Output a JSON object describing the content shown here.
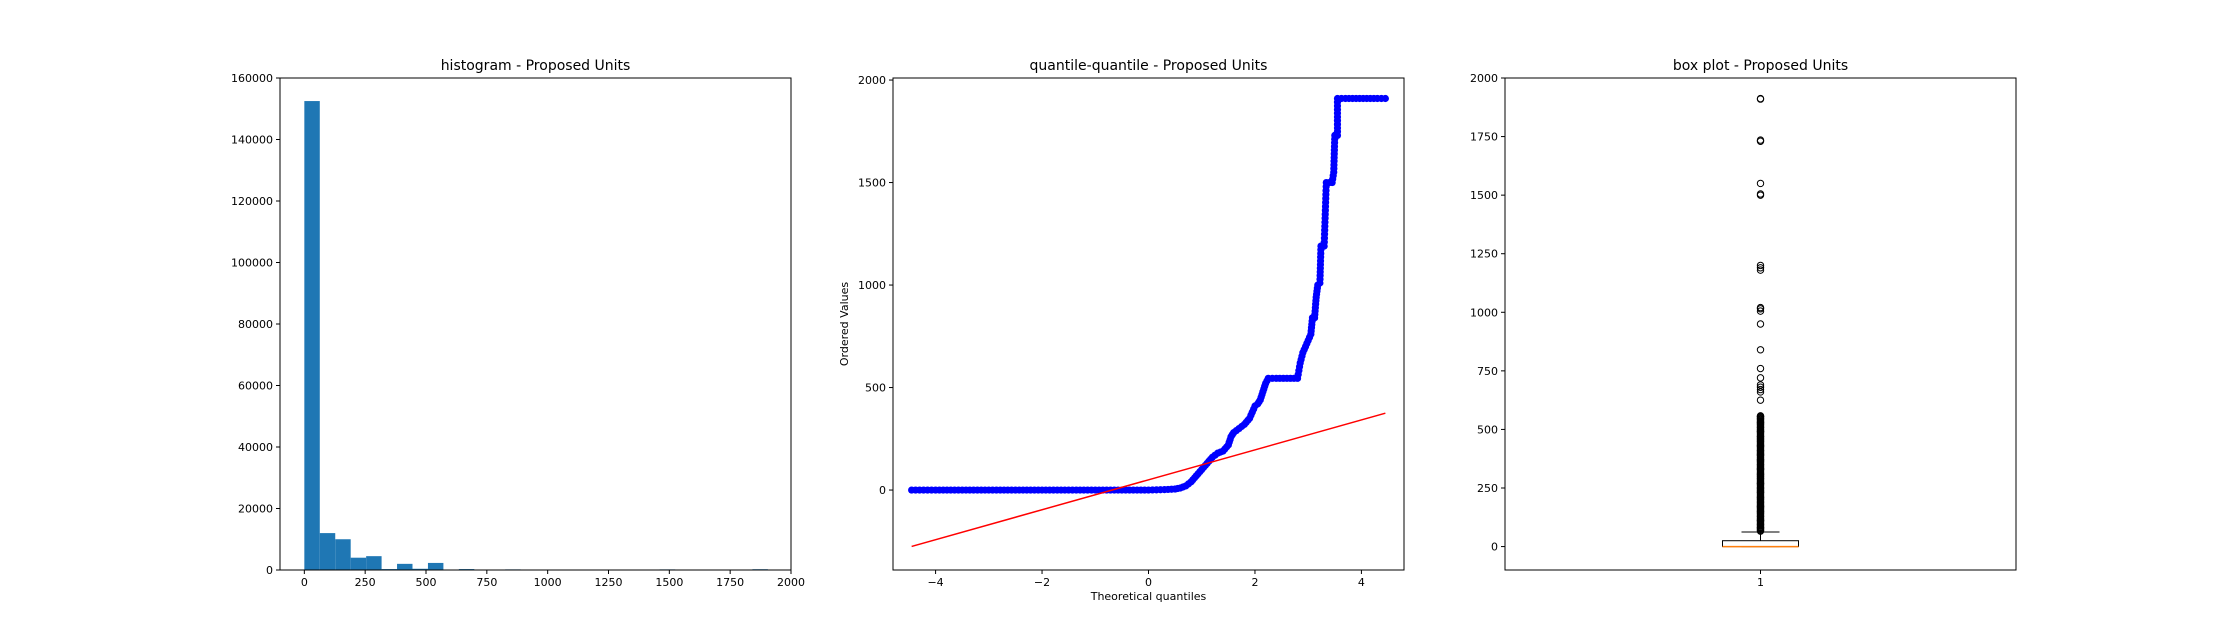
{
  "chart_data": [
    {
      "type": "bar",
      "subtype": "histogram",
      "title": "histogram - Proposed Units",
      "xlabel": "",
      "ylabel": "",
      "xlim": [
        -100,
        2000
      ],
      "ylim": [
        0,
        160000
      ],
      "xticks": [
        0,
        250,
        500,
        750,
        1000,
        1250,
        1500,
        1750,
        2000
      ],
      "yticks": [
        0,
        20000,
        40000,
        60000,
        80000,
        100000,
        120000,
        140000,
        160000
      ],
      "bins": [
        [
          0,
          63.5,
          152500
        ],
        [
          63.5,
          127,
          12000
        ],
        [
          127,
          190.5,
          10000
        ],
        [
          190.5,
          254,
          4000
        ],
        [
          254,
          317.5,
          4500
        ],
        [
          317.5,
          381,
          300
        ],
        [
          381,
          444.5,
          2000
        ],
        [
          444.5,
          508,
          400
        ],
        [
          508,
          571.5,
          2300
        ],
        [
          571.5,
          635,
          100
        ],
        [
          635,
          698.5,
          300
        ],
        [
          698.5,
          762,
          150
        ],
        [
          762,
          825.5,
          80
        ],
        [
          825.5,
          889,
          200
        ],
        [
          889,
          952.5,
          40
        ],
        [
          952.5,
          1016,
          150
        ],
        [
          1016,
          1079.5,
          10
        ],
        [
          1079.5,
          1143,
          10
        ],
        [
          1143,
          1206.5,
          150
        ],
        [
          1206.5,
          1270,
          10
        ],
        [
          1270,
          1333.5,
          5
        ],
        [
          1333.5,
          1397,
          5
        ],
        [
          1397,
          1460.5,
          5
        ],
        [
          1460.5,
          1524,
          200
        ],
        [
          1524,
          1587.5,
          20
        ],
        [
          1587.5,
          1651,
          5
        ],
        [
          1651,
          1714.5,
          5
        ],
        [
          1714.5,
          1778,
          60
        ],
        [
          1778,
          1841.5,
          5
        ],
        [
          1841.5,
          1905,
          250
        ]
      ],
      "colors": {
        "bar": "#1f77b4"
      },
      "grid": false,
      "legend": "none"
    },
    {
      "type": "scatter",
      "subtype": "qq-plot",
      "title": "quantile-quantile - Proposed Units",
      "xlabel": "Theoretical quantiles",
      "ylabel": "Ordered Values",
      "xlim": [
        -4.8,
        4.8
      ],
      "ylim": [
        -390,
        2010
      ],
      "xticks": [
        -4,
        -2,
        0,
        2,
        4
      ],
      "yticks": [
        0,
        500,
        1000,
        1500,
        2000
      ],
      "points": [
        [
          -4.45,
          0
        ],
        [
          -4.0,
          0
        ],
        [
          -3.5,
          0
        ],
        [
          -3.0,
          0
        ],
        [
          -2.5,
          0
        ],
        [
          -2.0,
          0
        ],
        [
          -1.5,
          0
        ],
        [
          -1.0,
          0
        ],
        [
          -0.5,
          0
        ],
        [
          0.0,
          0
        ],
        [
          0.3,
          2
        ],
        [
          0.5,
          5
        ],
        [
          0.6,
          10
        ],
        [
          0.7,
          20
        ],
        [
          0.8,
          40
        ],
        [
          0.9,
          70
        ],
        [
          1.0,
          100
        ],
        [
          1.1,
          130
        ],
        [
          1.2,
          160
        ],
        [
          1.3,
          180
        ],
        [
          1.4,
          190
        ],
        [
          1.5,
          220
        ],
        [
          1.55,
          260
        ],
        [
          1.6,
          280
        ],
        [
          1.7,
          300
        ],
        [
          1.8,
          320
        ],
        [
          1.9,
          350
        ],
        [
          1.95,
          380
        ],
        [
          2.0,
          410
        ],
        [
          2.05,
          420
        ],
        [
          2.1,
          440
        ],
        [
          2.15,
          480
        ],
        [
          2.2,
          520
        ],
        [
          2.25,
          545
        ],
        [
          2.4,
          545
        ],
        [
          2.6,
          545
        ],
        [
          2.8,
          545
        ],
        [
          2.85,
          620
        ],
        [
          2.9,
          670
        ],
        [
          2.95,
          700
        ],
        [
          3.0,
          730
        ],
        [
          3.05,
          760
        ],
        [
          3.08,
          840
        ],
        [
          3.12,
          840
        ],
        [
          3.15,
          940
        ],
        [
          3.18,
          1000
        ],
        [
          3.22,
          1010
        ],
        [
          3.24,
          1190
        ],
        [
          3.3,
          1190
        ],
        [
          3.34,
          1500
        ],
        [
          3.45,
          1500
        ],
        [
          3.48,
          1550
        ],
        [
          3.5,
          1730
        ],
        [
          3.55,
          1730
        ],
        [
          3.55,
          1910
        ],
        [
          3.7,
          1910
        ],
        [
          3.9,
          1910
        ],
        [
          4.1,
          1910
        ],
        [
          4.3,
          1910
        ],
        [
          4.45,
          1910
        ]
      ],
      "fit_line": {
        "x": [
          -4.45,
          4.45
        ],
        "y": [
          -275,
          375
        ]
      },
      "colors": {
        "points": "#0000ff",
        "line": "#ff0000"
      },
      "grid": false,
      "legend": "none"
    },
    {
      "type": "box",
      "title": "box plot - Proposed Units",
      "xlabel": "",
      "ylabel": "",
      "categories": [
        "1"
      ],
      "ylim": [
        -100,
        2000
      ],
      "yticks": [
        0,
        250,
        500,
        750,
        1000,
        1250,
        1500,
        1750,
        2000
      ],
      "box": {
        "min": 0,
        "q1": 0,
        "median": 0,
        "q3": 25,
        "whisker_high": 62
      },
      "outliers": [
        70,
        80,
        95,
        110,
        130,
        150,
        170,
        190,
        210,
        230,
        250,
        270,
        290,
        310,
        330,
        350,
        370,
        390,
        410,
        430,
        450,
        470,
        490,
        510,
        530,
        545,
        555,
        625,
        660,
        670,
        680,
        690,
        720,
        760,
        840,
        950,
        1005,
        1015,
        1020,
        1180,
        1190,
        1200,
        1500,
        1505,
        1550,
        1730,
        1735,
        1910,
        1912
      ],
      "colors": {
        "box": "#000000",
        "median": "#ff7f0e",
        "outlier": "#000000"
      },
      "grid": false,
      "legend": "none"
    }
  ]
}
